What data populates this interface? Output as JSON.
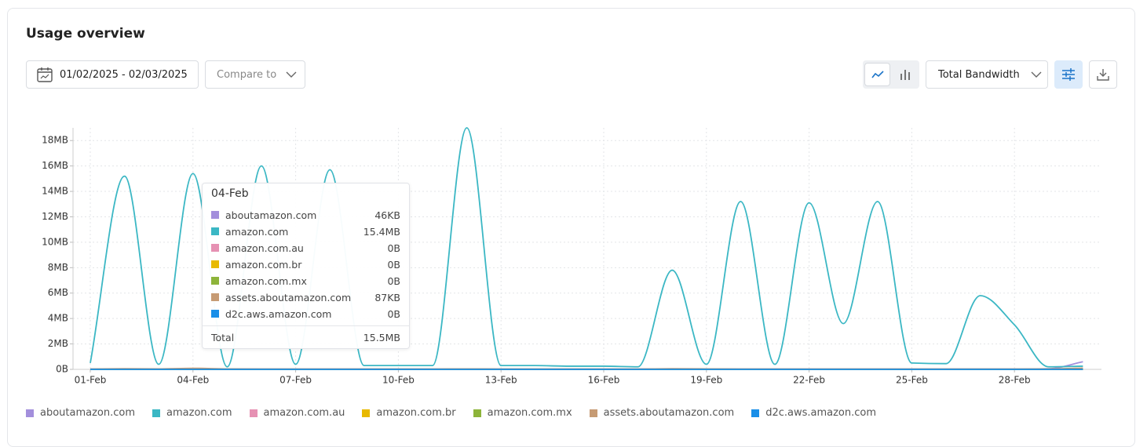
{
  "header": {
    "title": "Usage overview"
  },
  "controls": {
    "date_range": "01/02/2025 - 02/03/2025",
    "compare": "Compare to",
    "metric": "Total Bandwidth"
  },
  "chart_data": {
    "type": "line",
    "categories": [
      "01-Feb",
      null,
      null,
      "04-Feb",
      null,
      null,
      "07-Feb",
      null,
      null,
      "10-Feb",
      null,
      null,
      "13-Feb",
      null,
      null,
      "16-Feb",
      null,
      null,
      "19-Feb",
      null,
      null,
      "22-Feb",
      null,
      null,
      "25-Feb",
      null,
      null,
      "28-Feb",
      null,
      null
    ],
    "ylim": [
      0,
      19
    ],
    "yticks": [
      {
        "value": 0,
        "label": "0B"
      },
      {
        "value": 2,
        "label": "2MB"
      },
      {
        "value": 4,
        "label": "4MB"
      },
      {
        "value": 6,
        "label": "6MB"
      },
      {
        "value": 8,
        "label": "8MB"
      },
      {
        "value": 10,
        "label": "10MB"
      },
      {
        "value": 12,
        "label": "12MB"
      },
      {
        "value": 14,
        "label": "14MB"
      },
      {
        "value": 16,
        "label": "16MB"
      },
      {
        "value": 18,
        "label": "18MB"
      }
    ],
    "grid": true,
    "series": [
      {
        "name": "aboutamazon.com",
        "color": "#a38fdc",
        "values": [
          0.02,
          0.03,
          0.03,
          0.046,
          0.03,
          0.02,
          0.02,
          0.02,
          0.02,
          0.02,
          0.02,
          0.03,
          0.02,
          0.02,
          0.02,
          0.02,
          0.02,
          0.04,
          0.03,
          0.02,
          0.02,
          0.02,
          0.02,
          0.02,
          0.02,
          0.02,
          0.02,
          0.02,
          0.05,
          0.6
        ]
      },
      {
        "name": "amazon.com",
        "color": "#3bb7c4",
        "values": [
          0.5,
          15.2,
          0.4,
          15.4,
          0.2,
          16.0,
          0.4,
          15.7,
          0.3,
          0.3,
          0.3,
          19.0,
          0.3,
          0.3,
          0.25,
          0.25,
          0.2,
          7.8,
          0.4,
          13.2,
          0.4,
          13.1,
          3.6,
          13.2,
          0.5,
          0.45,
          5.8,
          3.5,
          0.2,
          0.25
        ]
      },
      {
        "name": "amazon.com.au",
        "color": "#e691b3",
        "values": [
          0,
          0,
          0,
          0,
          0,
          0,
          0,
          0,
          0,
          0,
          0,
          0,
          0,
          0,
          0,
          0,
          0,
          0,
          0,
          0,
          0,
          0,
          0,
          0,
          0,
          0,
          0,
          0,
          0,
          0
        ]
      },
      {
        "name": "amazon.com.br",
        "color": "#e8b900",
        "values": [
          0,
          0,
          0,
          0,
          0,
          0,
          0,
          0,
          0,
          0,
          0,
          0,
          0,
          0,
          0,
          0,
          0,
          0,
          0,
          0,
          0,
          0,
          0,
          0,
          0,
          0,
          0,
          0,
          0,
          0
        ]
      },
      {
        "name": "amazon.com.mx",
        "color": "#8db43a",
        "values": [
          0,
          0,
          0,
          0,
          0,
          0,
          0,
          0,
          0,
          0,
          0,
          0,
          0,
          0,
          0,
          0,
          0,
          0,
          0,
          0,
          0,
          0,
          0,
          0,
          0,
          0,
          0,
          0,
          0,
          0
        ]
      },
      {
        "name": "assets.aboutamazon.com",
        "color": "#c69b74",
        "values": [
          0.03,
          0.05,
          0.04,
          0.087,
          0.04,
          0.03,
          0.03,
          0.03,
          0.03,
          0.03,
          0.03,
          0.04,
          0.03,
          0.03,
          0.03,
          0.03,
          0.03,
          0.05,
          0.04,
          0.03,
          0.03,
          0.03,
          0.03,
          0.03,
          0.03,
          0.03,
          0.03,
          0.03,
          0.04,
          0.1
        ]
      },
      {
        "name": "d2c.aws.amazon.com",
        "color": "#1a8fe8",
        "values": [
          0,
          0,
          0,
          0,
          0,
          0,
          0,
          0,
          0,
          0,
          0,
          0,
          0,
          0,
          0,
          0,
          0,
          0,
          0,
          0,
          0,
          0,
          0,
          0,
          0,
          0,
          0,
          0,
          0,
          0
        ]
      }
    ]
  },
  "tooltip": {
    "values": [
      "46KB",
      "15.4MB",
      "0B",
      "0B",
      "0B",
      "87KB",
      "0B"
    ],
    "total_label": "Total",
    "total": "15.5MB"
  }
}
